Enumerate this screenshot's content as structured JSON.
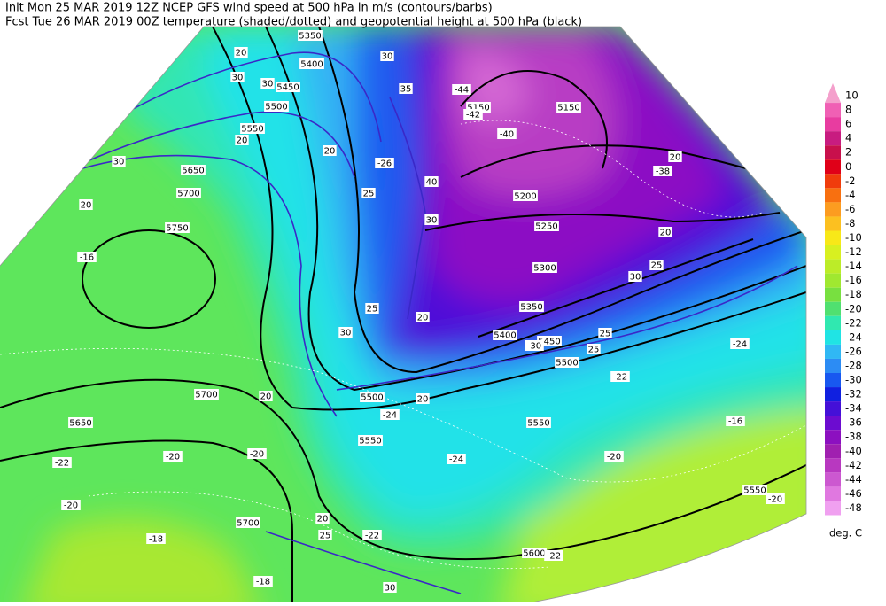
{
  "header": {
    "line1": "Init   Mon 25 MAR 2019 12Z  NCEP GFS wind speed at 500 hPa in m/s (contours/barbs)",
    "line2": "Fcst Tue 26 MAR 2019 00Z  temperature (shaded/dotted) and geopotential height at 500 hPa (black)"
  },
  "colorbar": {
    "levels": [
      10,
      8,
      6,
      4,
      2,
      0,
      -2,
      -4,
      -6,
      -8,
      -10,
      -12,
      -14,
      -16,
      -18,
      -20,
      -22,
      -24,
      -26,
      -28,
      -30,
      -32,
      -34,
      -36,
      -38,
      -40,
      -42,
      -44,
      -46,
      -48
    ],
    "colors": [
      "#f4a0cc",
      "#f060b4",
      "#e83ca0",
      "#c81c80",
      "#c8104c",
      "#e00018",
      "#f03c0c",
      "#f87010",
      "#fc9c20",
      "#fcc020",
      "#f8e818",
      "#d8f020",
      "#bcec28",
      "#a0e830",
      "#78e040",
      "#50e070",
      "#30e8b0",
      "#20e4e4",
      "#30b8f4",
      "#2c8cf4",
      "#1858f0",
      "#1020e0",
      "#4410d8",
      "#6c0cd0",
      "#8c10c0",
      "#a020b0",
      "#b838c0",
      "#cc58d0",
      "#e078e0",
      "#f0a0f0"
    ],
    "unit": "deg. C"
  },
  "map": {
    "height_labels": [
      5350,
      5400,
      5450,
      5500,
      5550,
      5650,
      5700,
      5750,
      5150,
      5150,
      5200,
      5250,
      5300,
      5350,
      5400,
      5450,
      5500,
      5500,
      5550,
      5550,
      5700,
      5650,
      5700,
      5600,
      5550
    ],
    "wind_labels": [
      20,
      30,
      30,
      20,
      30,
      20,
      20,
      30,
      35,
      40,
      25,
      30,
      25,
      20,
      30,
      20,
      20,
      25,
      25,
      20,
      25,
      30,
      20,
      20,
      25,
      30
    ],
    "temp_labels": [
      -44,
      -42,
      -40,
      -38,
      -26,
      -16,
      -22,
      -24,
      -20,
      -22,
      -20,
      -20,
      -24,
      -22,
      -18,
      -18,
      -22,
      -20,
      -16,
      -20,
      -30,
      -24
    ]
  }
}
